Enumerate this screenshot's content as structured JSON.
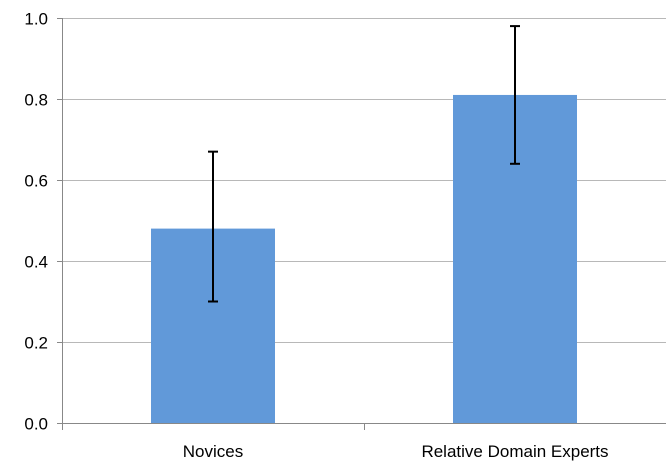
{
  "chart_data": {
    "type": "bar",
    "categories": [
      "Novices",
      "Relative Domain Experts"
    ],
    "values": [
      0.48,
      0.81
    ],
    "error_low": [
      0.3,
      0.64
    ],
    "error_high": [
      0.67,
      0.98
    ],
    "ylim": [
      0,
      1.0
    ],
    "yticks": [
      "0.0",
      "0.2",
      "0.4",
      "0.6",
      "0.8",
      "1.0"
    ],
    "title": "",
    "xlabel": "",
    "ylabel": "",
    "grid": true,
    "bar_color": "#6199d9",
    "grid_color": "#b8b8b8",
    "axis_color": "#888888",
    "error_color": "#000000"
  }
}
